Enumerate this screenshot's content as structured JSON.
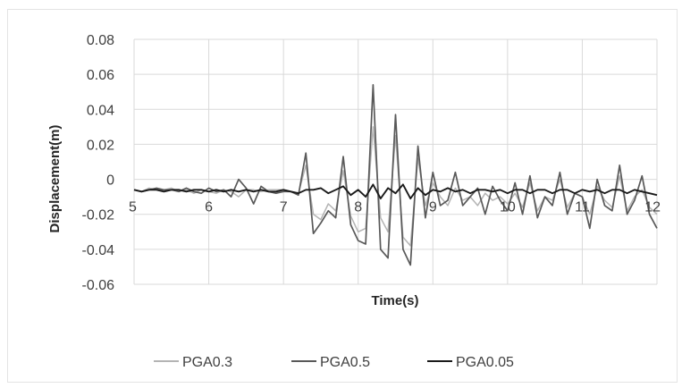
{
  "chart_data": {
    "type": "line",
    "title": "",
    "xlabel": "Time(s)",
    "ylabel": "Displacement(m)",
    "xlim": [
      5,
      12
    ],
    "ylim": [
      -0.06,
      0.08
    ],
    "x_ticks": [
      "5",
      "6",
      "7",
      "8",
      "9",
      "10",
      "11",
      "12"
    ],
    "y_ticks": [
      "0.08",
      "0.06",
      "0.04",
      "0.02",
      "0",
      "-0.02",
      "-0.04",
      "-0.06"
    ],
    "grid": true,
    "legend_position": "bottom",
    "x": [
      5.0,
      5.1,
      5.2,
      5.3,
      5.4,
      5.5,
      5.6,
      5.7,
      5.8,
      5.9,
      6.0,
      6.1,
      6.2,
      6.3,
      6.4,
      6.5,
      6.6,
      6.7,
      6.8,
      6.9,
      7.0,
      7.1,
      7.2,
      7.3,
      7.4,
      7.5,
      7.6,
      7.7,
      7.8,
      7.9,
      8.0,
      8.1,
      8.2,
      8.3,
      8.4,
      8.5,
      8.6,
      8.7,
      8.8,
      8.9,
      9.0,
      9.1,
      9.2,
      9.3,
      9.4,
      9.5,
      9.6,
      9.7,
      9.8,
      9.9,
      10.0,
      10.1,
      10.2,
      10.3,
      10.4,
      10.5,
      10.6,
      10.7,
      10.8,
      10.9,
      11.0,
      11.1,
      11.2,
      11.3,
      11.4,
      11.5,
      11.6,
      11.7,
      11.8,
      11.9,
      12.0
    ],
    "series": [
      {
        "name": "PGA0.3",
        "color": "#b4b4b4",
        "values": [
          -0.006,
          -0.007,
          -0.005,
          -0.006,
          -0.006,
          -0.005,
          -0.007,
          -0.006,
          -0.008,
          -0.006,
          -0.007,
          -0.008,
          -0.006,
          -0.007,
          -0.01,
          -0.006,
          -0.006,
          -0.007,
          -0.006,
          -0.006,
          -0.006,
          -0.007,
          -0.008,
          0.008,
          -0.02,
          -0.023,
          -0.014,
          -0.018,
          0.005,
          -0.021,
          -0.03,
          -0.028,
          0.03,
          -0.022,
          -0.03,
          0.025,
          -0.033,
          -0.038,
          0.012,
          -0.015,
          -0.002,
          -0.01,
          -0.015,
          -0.005,
          -0.012,
          -0.01,
          -0.015,
          -0.008,
          -0.012,
          -0.01,
          -0.014,
          -0.008,
          -0.016,
          -0.002,
          -0.018,
          -0.01,
          -0.012,
          0.0,
          -0.016,
          -0.008,
          -0.01,
          -0.02,
          -0.004,
          -0.012,
          -0.016,
          0.002,
          -0.018,
          -0.01,
          -0.006,
          -0.016,
          -0.02
        ]
      },
      {
        "name": "PGA0.5",
        "color": "#595959",
        "values": [
          -0.006,
          -0.007,
          -0.006,
          -0.005,
          -0.006,
          -0.006,
          -0.007,
          -0.005,
          -0.007,
          -0.008,
          -0.005,
          -0.007,
          -0.006,
          -0.01,
          0.0,
          -0.005,
          -0.014,
          -0.004,
          -0.007,
          -0.008,
          -0.007,
          -0.007,
          -0.009,
          0.015,
          -0.031,
          -0.025,
          -0.018,
          -0.022,
          0.013,
          -0.026,
          -0.035,
          -0.037,
          0.054,
          -0.04,
          -0.045,
          0.037,
          -0.04,
          -0.049,
          0.019,
          -0.022,
          0.004,
          -0.015,
          -0.012,
          0.004,
          -0.015,
          -0.01,
          -0.005,
          -0.02,
          -0.004,
          -0.012,
          -0.018,
          -0.002,
          -0.02,
          0.002,
          -0.022,
          -0.01,
          -0.015,
          0.004,
          -0.02,
          -0.008,
          -0.01,
          -0.028,
          0.0,
          -0.015,
          -0.018,
          0.008,
          -0.02,
          -0.012,
          0.002,
          -0.02,
          -0.028
        ]
      },
      {
        "name": "PGA0.05",
        "color": "#1a1a1a",
        "values": [
          -0.006,
          -0.007,
          -0.006,
          -0.006,
          -0.007,
          -0.006,
          -0.006,
          -0.007,
          -0.006,
          -0.006,
          -0.007,
          -0.006,
          -0.007,
          -0.006,
          -0.007,
          -0.006,
          -0.007,
          -0.006,
          -0.007,
          -0.007,
          -0.006,
          -0.007,
          -0.008,
          -0.006,
          -0.006,
          -0.005,
          -0.008,
          -0.006,
          -0.004,
          -0.009,
          -0.006,
          -0.01,
          -0.003,
          -0.011,
          -0.005,
          -0.008,
          -0.003,
          -0.011,
          -0.005,
          -0.009,
          -0.006,
          -0.007,
          -0.005,
          -0.007,
          -0.006,
          -0.008,
          -0.006,
          -0.006,
          -0.007,
          -0.006,
          -0.008,
          -0.006,
          -0.006,
          -0.008,
          -0.006,
          -0.006,
          -0.008,
          -0.006,
          -0.006,
          -0.008,
          -0.006,
          -0.007,
          -0.006,
          -0.008,
          -0.006,
          -0.006,
          -0.008,
          -0.006,
          -0.007,
          -0.008,
          -0.009
        ]
      }
    ]
  }
}
